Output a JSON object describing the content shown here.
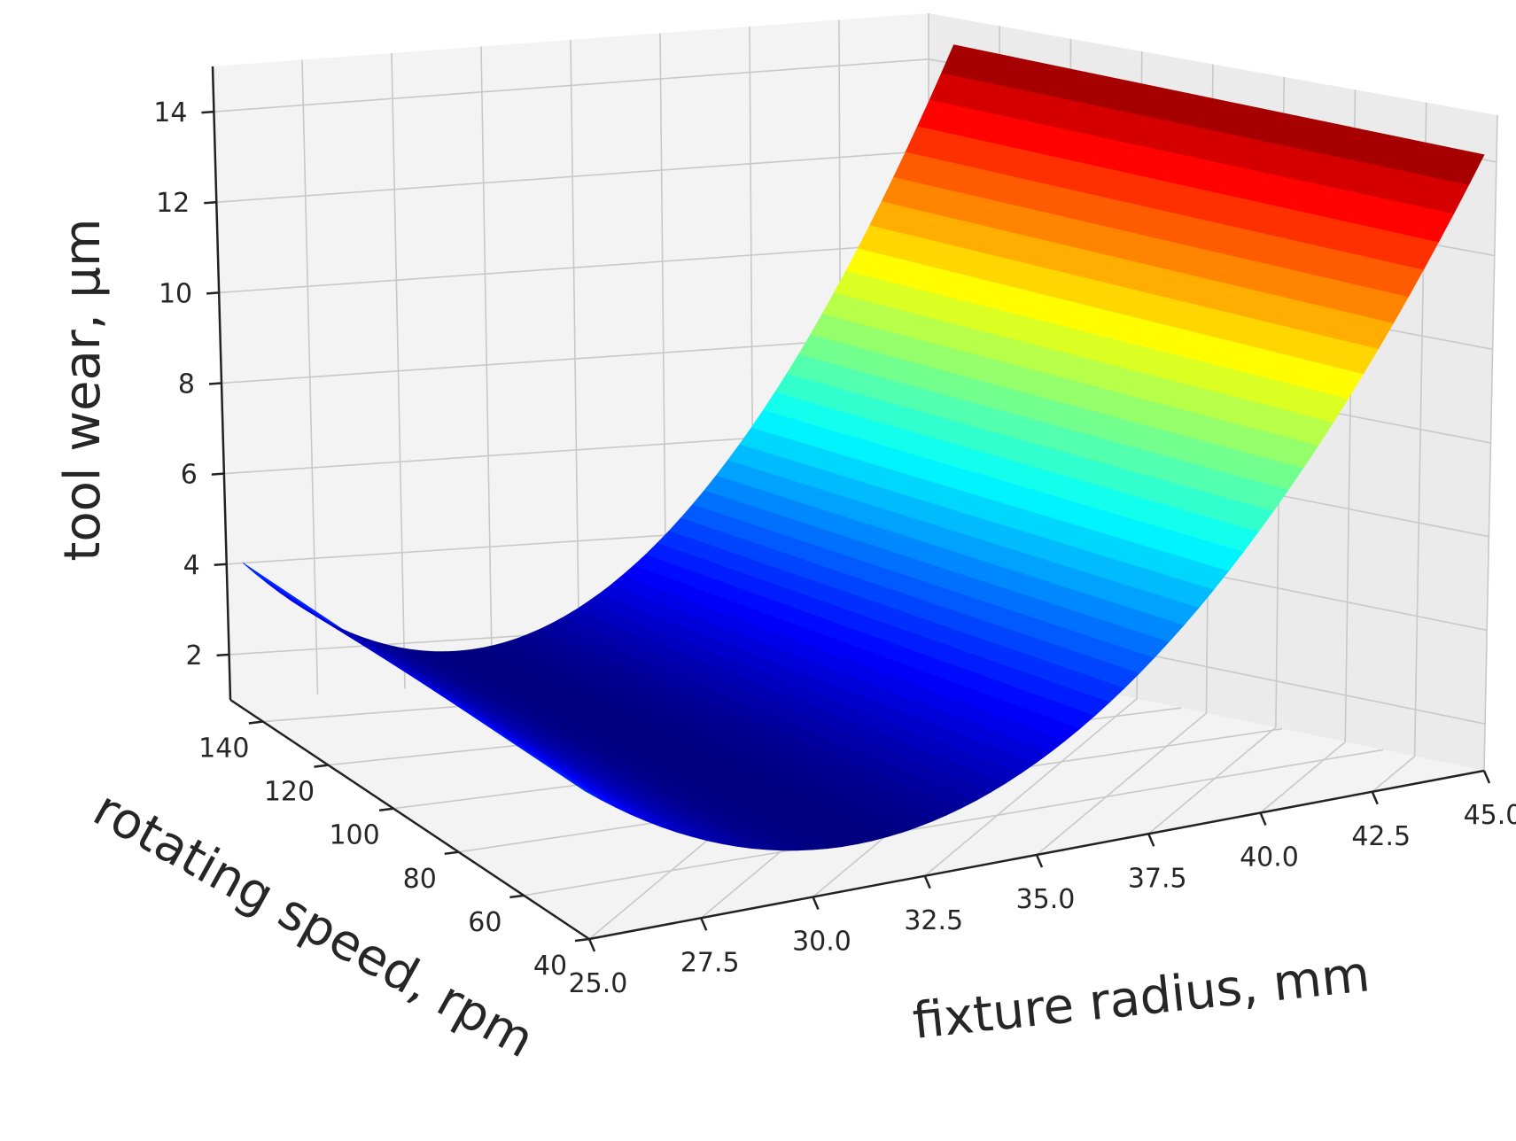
{
  "chart_data": {
    "type": "surface",
    "title": "",
    "xlabel": "fixture radius, mm",
    "ylabel": "rotating speed, rpm",
    "zlabel": "tool wear, μm",
    "x_ticks": [
      "25.0",
      "27.5",
      "30.0",
      "32.5",
      "35.0",
      "37.5",
      "40.0",
      "42.5",
      "45.0"
    ],
    "y_ticks": [
      "40",
      "60",
      "80",
      "100",
      "120",
      "140"
    ],
    "z_ticks": [
      "2",
      "4",
      "6",
      "8",
      "10",
      "12",
      "14"
    ],
    "xlim": [
      25,
      45
    ],
    "ylim": [
      40,
      150
    ],
    "zlim": [
      1,
      15
    ],
    "grid": true,
    "colormap": "jet",
    "surface_profile": {
      "description_axis": "fixture radius (mm)",
      "x": [
        25.0,
        27.5,
        30.0,
        32.5,
        35.0,
        37.5,
        40.0,
        42.5,
        45.0
      ],
      "z": [
        4.0,
        2.9,
        2.3,
        2.3,
        3.0,
        4.5,
        7.0,
        10.5,
        14.8
      ]
    },
    "colors": {
      "pane_left": "#f3f3f3",
      "pane_back": "#ebebeb",
      "grid": "#c8c8c8",
      "axis": "#222222"
    }
  }
}
